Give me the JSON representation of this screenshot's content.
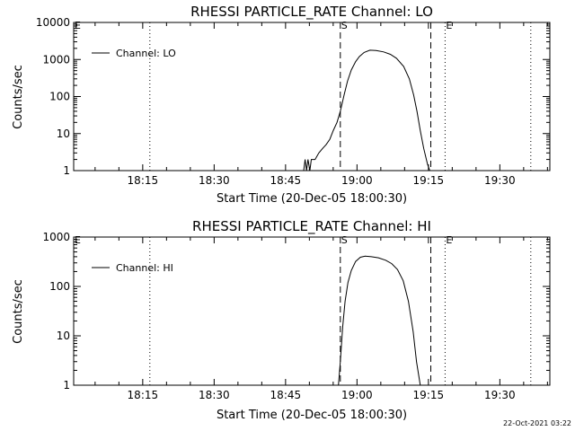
{
  "footer": {
    "timestamp": "22-Oct-2021 03:22"
  },
  "chart_data": [
    {
      "type": "line",
      "title": "RHESSI PARTICLE_RATE Channel: LO",
      "xlabel": "Start Time (20-Dec-05 18:00:30)",
      "ylabel": "Counts/sec",
      "yscale": "log",
      "xlim": [
        "18:00:30",
        "19:40:30"
      ],
      "ylim": [
        1,
        10000
      ],
      "x_ticks": [
        "18:15",
        "18:30",
        "18:45",
        "19:00",
        "19:15",
        "19:30"
      ],
      "y_ticks": [
        "1",
        "10",
        "100",
        "1000",
        "10000"
      ],
      "legend": {
        "position": "top-left",
        "entries": [
          "Channel: LO"
        ]
      },
      "grid": false,
      "markers": [
        {
          "label": "E",
          "time": "18:00:30",
          "style": "dotted"
        },
        {
          "label": "",
          "time": "18:16:30",
          "style": "dotted"
        },
        {
          "label": "S",
          "time": "18:56:30",
          "style": "dashed"
        },
        {
          "label": "",
          "time": "19:15:30",
          "style": "dashed"
        },
        {
          "label": "E",
          "time": "19:18:30",
          "style": "dotted"
        },
        {
          "label": "",
          "time": "19:36:30",
          "style": "dotted"
        }
      ],
      "series": [
        {
          "name": "Channel: LO",
          "points": [
            [
              "18:48:48",
              1
            ],
            [
              "18:49:06",
              2
            ],
            [
              "18:49:24",
              1
            ],
            [
              "18:49:42",
              2
            ],
            [
              "18:50:06",
              1
            ],
            [
              "18:50:24",
              2
            ],
            [
              "18:51:12",
              2
            ],
            [
              "18:52:00",
              3
            ],
            [
              "18:52:48",
              4
            ],
            [
              "18:53:30",
              5
            ],
            [
              "18:54:18",
              7
            ],
            [
              "18:55:00",
              12
            ],
            [
              "18:55:48",
              20
            ],
            [
              "18:56:30",
              40
            ],
            [
              "18:57:18",
              110
            ],
            [
              "18:58:00",
              260
            ],
            [
              "18:58:48",
              520
            ],
            [
              "18:59:42",
              870
            ],
            [
              "19:00:30",
              1200
            ],
            [
              "19:01:30",
              1550
            ],
            [
              "19:02:42",
              1780
            ],
            [
              "19:04:00",
              1750
            ],
            [
              "19:05:36",
              1600
            ],
            [
              "19:07:00",
              1380
            ],
            [
              "19:08:18",
              1080
            ],
            [
              "19:09:48",
              650
            ],
            [
              "19:11:00",
              300
            ],
            [
              "19:11:54",
              110
            ],
            [
              "19:12:36",
              40
            ],
            [
              "19:13:18",
              12
            ],
            [
              "19:14:00",
              4
            ],
            [
              "19:14:48",
              1.5
            ],
            [
              "19:15:18",
              1
            ]
          ]
        }
      ]
    },
    {
      "type": "line",
      "title": "RHESSI PARTICLE_RATE Channel: HI",
      "xlabel": "Start Time (20-Dec-05 18:00:30)",
      "ylabel": "Counts/sec",
      "yscale": "log",
      "xlim": [
        "18:00:30",
        "19:40:30"
      ],
      "ylim": [
        1,
        1000
      ],
      "x_ticks": [
        "18:15",
        "18:30",
        "18:45",
        "19:00",
        "19:15",
        "19:30"
      ],
      "y_ticks": [
        "1",
        "10",
        "100",
        "1000"
      ],
      "legend": {
        "position": "top-left",
        "entries": [
          "Channel: HI"
        ]
      },
      "grid": false,
      "markers": [
        {
          "label": "E",
          "time": "18:00:30",
          "style": "dotted"
        },
        {
          "label": "",
          "time": "18:16:30",
          "style": "dotted"
        },
        {
          "label": "S",
          "time": "18:56:30",
          "style": "dashed"
        },
        {
          "label": "",
          "time": "19:15:30",
          "style": "dashed"
        },
        {
          "label": "E",
          "time": "19:18:30",
          "style": "dotted"
        },
        {
          "label": "",
          "time": "19:36:30",
          "style": "dotted"
        }
      ],
      "series": [
        {
          "name": "Channel: HI",
          "points": [
            [
              "18:56:06",
              1
            ],
            [
              "18:56:30",
              3
            ],
            [
              "18:57:00",
              15
            ],
            [
              "18:57:30",
              50
            ],
            [
              "18:58:06",
              120
            ],
            [
              "18:58:48",
              210
            ],
            [
              "18:59:42",
              320
            ],
            [
              "19:00:42",
              390
            ],
            [
              "19:01:42",
              410
            ],
            [
              "19:03:00",
              400
            ],
            [
              "19:04:30",
              380
            ],
            [
              "19:06:00",
              340
            ],
            [
              "19:07:18",
              290
            ],
            [
              "19:08:30",
              220
            ],
            [
              "19:09:42",
              130
            ],
            [
              "19:10:48",
              50
            ],
            [
              "19:11:48",
              12
            ],
            [
              "19:12:30",
              3
            ],
            [
              "19:13:18",
              1
            ]
          ]
        }
      ]
    }
  ]
}
